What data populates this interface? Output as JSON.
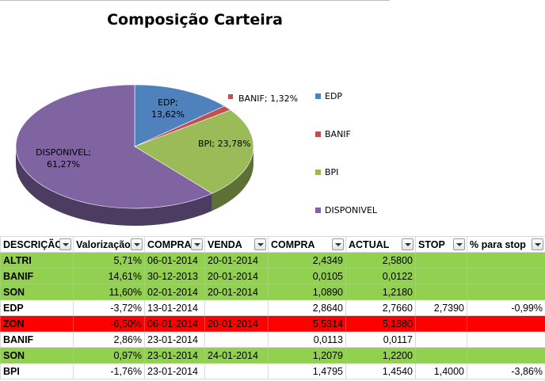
{
  "chart_data": {
    "type": "pie",
    "title": "Composição Carteira",
    "slices": [
      {
        "name": "EDP",
        "value": 13.62,
        "label": "EDP;\n13,62%",
        "color": "#4f81bd"
      },
      {
        "name": "BANIF",
        "value": 1.32,
        "label": "BANIF; 1,32%",
        "color": "#c0504d"
      },
      {
        "name": "BPI",
        "value": 23.78,
        "label": "BPI; 23,78%",
        "color": "#9bbb59"
      },
      {
        "name": "DISPONIVEL",
        "value": 61.27,
        "label": "DISPONIVEL;\n61,27%",
        "color": "#8064a2"
      }
    ],
    "legend": [
      "EDP",
      "BANIF",
      "BPI",
      "DISPONIVEL"
    ],
    "legend_position": "right"
  },
  "table": {
    "headers": [
      "DESCRIÇÃO",
      "Valorização",
      "COMPRA",
      "VENDA",
      "COMPRA",
      "ACTUAL",
      "STOP",
      "% para stop"
    ],
    "rows": [
      {
        "style": "green",
        "cells": [
          "ALTRI",
          "5,71%",
          "06-01-2014",
          "20-01-2014",
          "2,4349",
          "2,5800",
          "",
          ""
        ]
      },
      {
        "style": "green",
        "cells": [
          "BANIF",
          "14,61%",
          "30-12-2013",
          "20-01-2014",
          "0,0105",
          "0,0122",
          "",
          ""
        ]
      },
      {
        "style": "green",
        "cells": [
          "SON",
          "11,60%",
          "02-01-2014",
          "20-01-2014",
          "1,0890",
          "1,2180",
          "",
          ""
        ]
      },
      {
        "style": "white",
        "cells": [
          "EDP",
          "-3,72%",
          "13-01-2014",
          "",
          "2,8640",
          "2,7660",
          "2,7390",
          "-0,99%"
        ]
      },
      {
        "style": "red",
        "cells": [
          "ZON",
          "-6,50%",
          "06-01-2014",
          "20-01-2014",
          "5,5314",
          "5,1880",
          "",
          ""
        ]
      },
      {
        "style": "white",
        "cells": [
          "BANIF",
          "2,86%",
          "23-01-2014",
          "",
          "0,0113",
          "0,0117",
          "",
          ""
        ]
      },
      {
        "style": "green",
        "cells": [
          "SON",
          "0,97%",
          "23-01-2014",
          "24-01-2014",
          "1,2079",
          "1,2200",
          "",
          ""
        ]
      },
      {
        "style": "white",
        "cells": [
          "BPI",
          "-1,76%",
          "23-01-2014",
          "",
          "1,4795",
          "1,4540",
          "1,4000",
          "-3,86%"
        ]
      }
    ]
  }
}
